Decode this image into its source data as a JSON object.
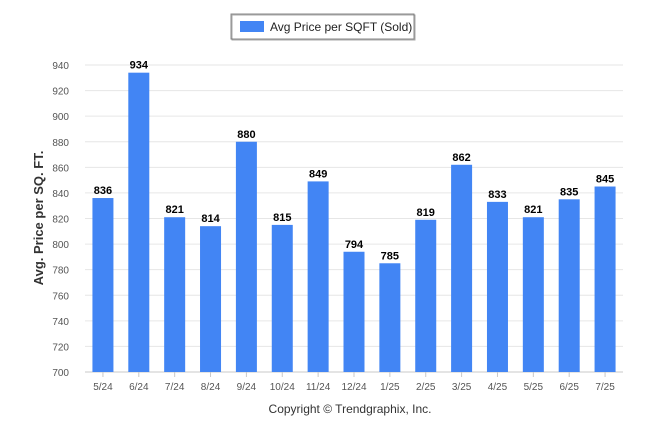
{
  "chart_data": {
    "type": "bar",
    "categories": [
      "5/24",
      "6/24",
      "7/24",
      "8/24",
      "9/24",
      "10/24",
      "11/24",
      "12/24",
      "1/25",
      "2/25",
      "3/25",
      "4/25",
      "5/25",
      "6/25",
      "7/25"
    ],
    "series": [
      {
        "name": "Avg Price per SQFT (Sold)",
        "values": [
          836,
          934,
          821,
          814,
          880,
          815,
          849,
          794,
          785,
          819,
          862,
          833,
          821,
          835,
          845
        ],
        "color": "#4285f4"
      }
    ],
    "value_labels": [
      "836",
      "934",
      "821",
      "814",
      "880",
      "815",
      "849",
      "794",
      "785",
      "819",
      "862",
      "833",
      "821",
      "835",
      "845"
    ],
    "ylabel": "Avg. Price per SQ. FT.",
    "ylim": [
      700,
      940
    ],
    "yticks": [
      "700",
      "720",
      "740",
      "760",
      "780",
      "800",
      "820",
      "840",
      "860",
      "880",
      "900",
      "920",
      "940"
    ],
    "grid": true,
    "legend_placement": "top-center"
  },
  "footer": {
    "copyright": "Copyright © Trendgraphix, Inc."
  },
  "colors": {
    "bar": "#4285f4",
    "grid": "#e6e6e6"
  }
}
